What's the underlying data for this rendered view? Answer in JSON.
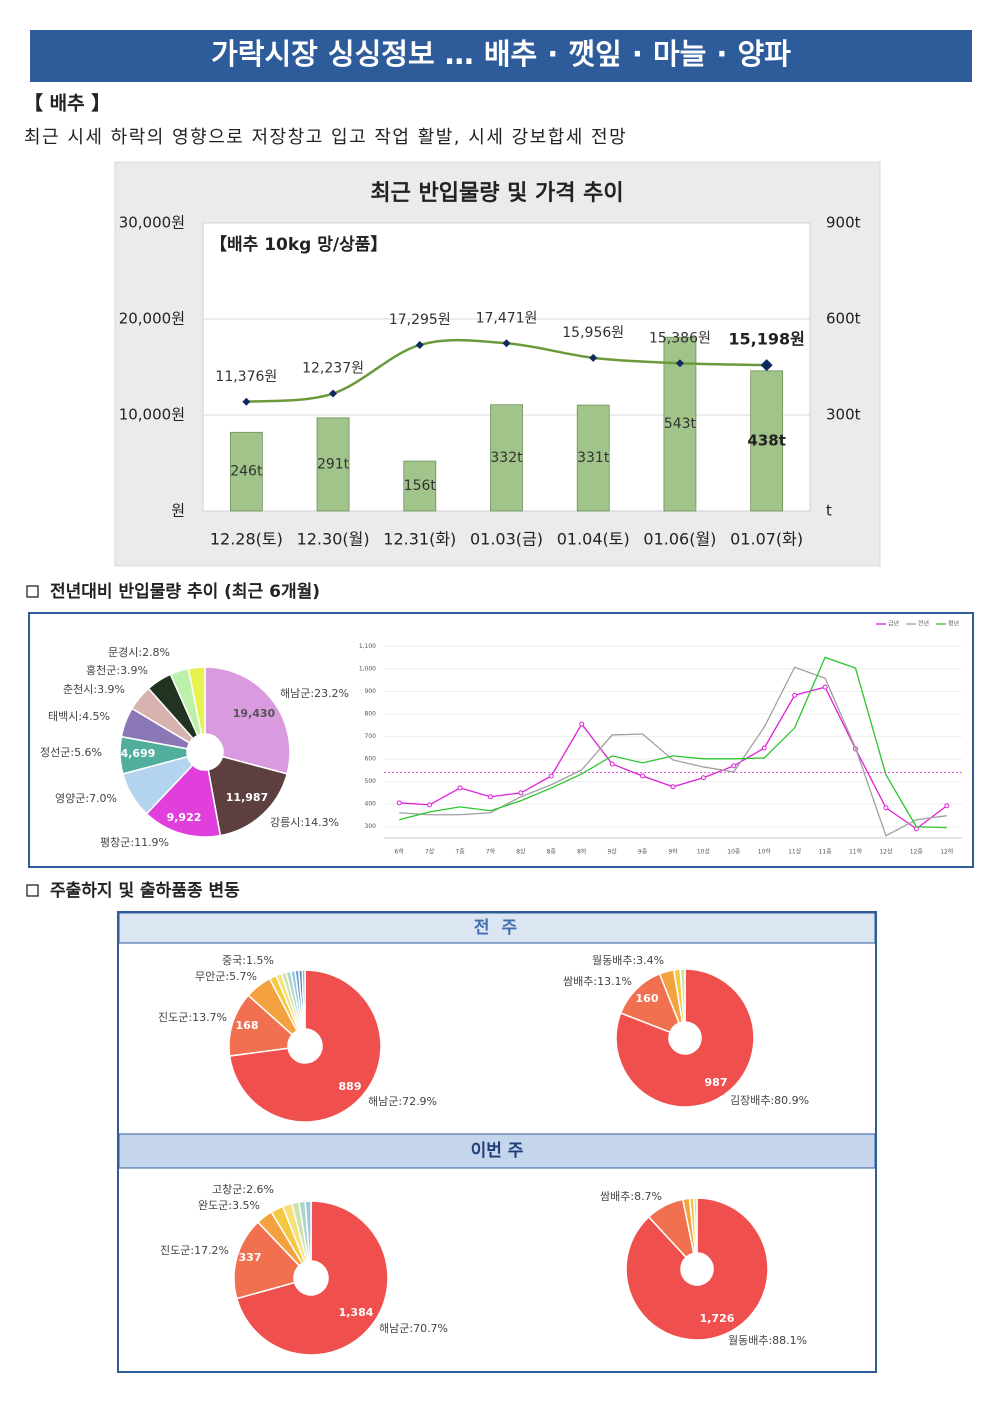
{
  "header": {
    "title": "가락시장 싱싱정보 … 배추 · 깻잎 · 마늘 · 양파"
  },
  "section1": {
    "heading": "【 배추 】",
    "summary": "최근 시세 하락의 영향으로 저장창고 입고 작업 활발, 시세 강보합세 전망"
  },
  "section2": {
    "heading": "전년대비 반입물량 추이 (최근 6개월)"
  },
  "section3": {
    "heading": "주출하지 및 출하품종 변동",
    "prev_week": "전 주",
    "this_week": "이번 주"
  },
  "chart_data": [
    {
      "type": "combo",
      "title": "최근 반입물량 및 가격 추이",
      "annotation": "【배추 10kg 망/상품】",
      "categories": [
        "12.28(토)",
        "12.30(월)",
        "12.31(화)",
        "01.03(금)",
        "01.04(토)",
        "01.06(월)",
        "01.07(화)"
      ],
      "series": [
        {
          "kind": "bar",
          "axis": "y2",
          "color": "#a1c48a",
          "values": [
            246,
            291,
            156,
            332,
            331,
            543,
            438
          ],
          "value_labels": [
            "246t",
            "291t",
            "156t",
            "332t",
            "331t",
            "543t",
            "438t"
          ]
        },
        {
          "kind": "line",
          "axis": "y",
          "color": "#6a9a3a",
          "marker_color": "#0f2a5e",
          "values": [
            11376,
            12237,
            17295,
            17471,
            15956,
            15386,
            15198
          ],
          "value_labels": [
            "11,376원",
            "12,237원",
            "17,295원",
            "17,471원",
            "15,956원",
            "15,386원",
            "15,198원"
          ]
        }
      ],
      "ylim": [
        0,
        30000
      ],
      "yticks": [
        {
          "value": 0,
          "label": "원"
        },
        {
          "value": 10000,
          "label": "10,000원"
        },
        {
          "value": 20000,
          "label": "20,000원"
        },
        {
          "value": 30000,
          "label": "30,000원"
        }
      ],
      "y2lim": [
        0,
        900
      ],
      "y2ticks": [
        {
          "value": 0,
          "label": "t"
        },
        {
          "value": 300,
          "label": "300t"
        },
        {
          "value": 600,
          "label": "600t"
        },
        {
          "value": 900,
          "label": "900t"
        }
      ],
      "grid": true
    },
    {
      "type": "pie",
      "values": [
        23.2,
        14.3,
        11.9,
        7.0,
        5.6,
        4.5,
        3.9,
        3.9,
        2.8,
        2.5
      ],
      "value_labels": [
        "해남군:23.2%",
        "강릉시:14.3%",
        "평창군:11.9%",
        "영양군:7.0%",
        "정선군:5.6%",
        "태백시:4.5%",
        "춘천시:3.9%",
        "홍천군:3.9%",
        "문경시:2.8%",
        null
      ],
      "count_labels": [
        "19,430",
        "11,987",
        "9,922",
        null,
        "4,699",
        null,
        null,
        null,
        null,
        null
      ],
      "colors": [
        "#d99ae0",
        "#5e3f3f",
        "#e03fdc",
        "#b3d3ee",
        "#52ae9c",
        "#8a78b6",
        "#d8b2ae",
        "#223322",
        "#bdf0a8",
        "#e6f250"
      ]
    },
    {
      "type": "line",
      "categories": [
        "6하",
        "7상",
        "7중",
        "7하",
        "8상",
        "8중",
        "8하",
        "9상",
        "9중",
        "9하",
        "10상",
        "10중",
        "10하",
        "11상",
        "11중",
        "11하",
        "12상",
        "12중",
        "12하"
      ],
      "series": [
        {
          "name": "금년",
          "color": "#e020d8",
          "values": [
            406,
            397,
            472,
            433,
            450,
            525,
            755,
            578,
            525,
            477,
            517,
            570,
            649,
            883,
            919,
            645,
            384,
            291,
            393
          ]
        },
        {
          "name": "전년",
          "color": "#a0a0a0",
          "values": [
            362,
            353,
            353,
            362,
            433,
            486,
            552,
            707,
            711,
            596,
            565,
            543,
            742,
            1007,
            958,
            649,
            260,
            331,
            349
          ]
        },
        {
          "name": "평년",
          "color": "#2cc62c",
          "values": [
            331,
            366,
            388,
            371,
            415,
            472,
            534,
            614,
            583,
            614,
            601,
            601,
            605,
            738,
            1051,
            1003,
            530,
            300,
            296
          ]
        }
      ],
      "reference_value": 540,
      "ylim": [
        250,
        1150
      ],
      "yticks": [
        300,
        400,
        500,
        600,
        700,
        800,
        900,
        {
          "value": 1000,
          "label": "1,000"
        },
        {
          "value": 1100,
          "label": "1,100"
        }
      ],
      "grid": true,
      "legend": "top-right"
    },
    {
      "type": "pie",
      "values": [
        72.9,
        13.7,
        5.7,
        1.5,
        1.2,
        1.0,
        1.0,
        0.9,
        0.8,
        0.7,
        0.6
      ],
      "value_labels": [
        "해남군:72.9%",
        "진도군:13.7%",
        "무안군:5.7%",
        "중국:1.5%",
        null,
        null,
        null,
        null,
        null,
        null,
        null
      ],
      "count_labels": [
        "889",
        "168",
        null,
        null,
        null,
        null,
        null,
        null,
        null,
        null,
        null
      ],
      "colors": [
        "#f0504d",
        "#f07050",
        "#f4a240",
        "#f5c842",
        "#f6e07a",
        "#c9e3a8",
        "#a9d8c8",
        "#9cc4e4",
        "#6aa0d0",
        "#4a7fc0",
        "#8fa8d8"
      ]
    },
    {
      "type": "pie",
      "values": [
        80.9,
        13.1,
        3.4,
        1.5,
        1.1
      ],
      "value_labels": [
        "김장배추:80.9%",
        "쌈배추:13.1%",
        "월동배추:3.4%",
        null,
        null
      ],
      "count_labels": [
        "987",
        "160",
        null,
        null,
        null
      ],
      "colors": [
        "#f0504d",
        "#f07050",
        "#f4a240",
        "#f5c842",
        "#c9e3a8"
      ]
    },
    {
      "type": "pie",
      "values": [
        70.7,
        17.2,
        3.5,
        2.6,
        2.0,
        1.5,
        1.3,
        1.2
      ],
      "value_labels": [
        "해남군:70.7%",
        "진도군:17.2%",
        "완도군:3.5%",
        "고창군:2.6%",
        null,
        null,
        null,
        null
      ],
      "count_labels": [
        "1,384",
        "337",
        null,
        null,
        null,
        null,
        null,
        null
      ],
      "colors": [
        "#f0504d",
        "#f07050",
        "#f4a240",
        "#f5c842",
        "#f6e07a",
        "#c9e3a8",
        "#a9d8c8",
        "#9cc4e4"
      ]
    },
    {
      "type": "pie",
      "values": [
        88.1,
        8.7,
        1.5,
        1.0,
        0.7
      ],
      "value_labels": [
        "월동배추:88.1%",
        "쌈배추:8.7%",
        null,
        null,
        null
      ],
      "count_labels": [
        "1,726",
        null,
        null,
        null,
        null
      ],
      "colors": [
        "#f0504d",
        "#f07050",
        "#f4a240",
        "#f5c842",
        "#c9e3a8"
      ]
    }
  ]
}
